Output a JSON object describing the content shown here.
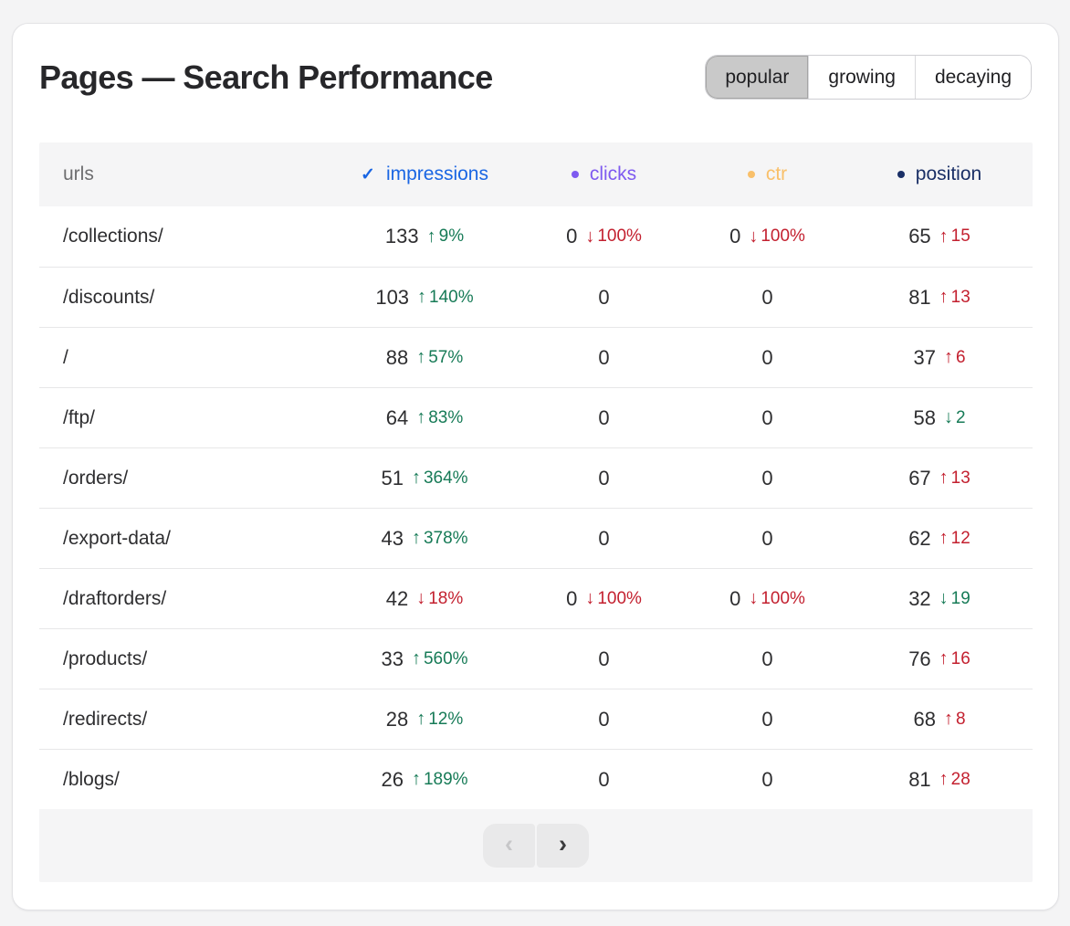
{
  "page": {
    "title": "Pages — Search Performance"
  },
  "tabs": [
    {
      "label": "popular",
      "active": true
    },
    {
      "label": "growing",
      "active": false
    },
    {
      "label": "decaying",
      "active": false
    }
  ],
  "colors": {
    "impressions_blue": "#1a66e3",
    "clicks_purple": "#7e5af0",
    "ctr_yellow": "#f9c06a",
    "position_navy": "#1a2f66",
    "urls_gray": "#6e6e70",
    "good_green": "#177b57",
    "bad_red": "#c3202f"
  },
  "table": {
    "columns": [
      {
        "key": "urls",
        "label": "urls",
        "marker": "none",
        "color": "#6e6e70"
      },
      {
        "key": "impressions",
        "label": "impressions",
        "marker": "check",
        "color": "#1a66e3"
      },
      {
        "key": "clicks",
        "label": "clicks",
        "marker": "dot",
        "color": "#7e5af0"
      },
      {
        "key": "ctr",
        "label": "ctr",
        "marker": "dot",
        "color": "#f9c06a"
      },
      {
        "key": "position",
        "label": "position",
        "marker": "dot",
        "color": "#1a2f66"
      }
    ],
    "rows": [
      {
        "url": "/collections/",
        "impressions": {
          "value": "133",
          "change": {
            "dir": "up",
            "delta": "9%",
            "tone": "good"
          }
        },
        "clicks": {
          "value": "0",
          "change": {
            "dir": "down",
            "delta": "100%",
            "tone": "bad"
          }
        },
        "ctr": {
          "value": "0",
          "change": {
            "dir": "down",
            "delta": "100%",
            "tone": "bad"
          }
        },
        "position": {
          "value": "65",
          "change": {
            "dir": "up",
            "delta": "15",
            "tone": "bad"
          }
        }
      },
      {
        "url": "/discounts/",
        "impressions": {
          "value": "103",
          "change": {
            "dir": "up",
            "delta": "140%",
            "tone": "good"
          }
        },
        "clicks": {
          "value": "0",
          "change": null
        },
        "ctr": {
          "value": "0",
          "change": null
        },
        "position": {
          "value": "81",
          "change": {
            "dir": "up",
            "delta": "13",
            "tone": "bad"
          }
        }
      },
      {
        "url": "/",
        "impressions": {
          "value": "88",
          "change": {
            "dir": "up",
            "delta": "57%",
            "tone": "good"
          }
        },
        "clicks": {
          "value": "0",
          "change": null
        },
        "ctr": {
          "value": "0",
          "change": null
        },
        "position": {
          "value": "37",
          "change": {
            "dir": "up",
            "delta": "6",
            "tone": "bad"
          }
        }
      },
      {
        "url": "/ftp/",
        "impressions": {
          "value": "64",
          "change": {
            "dir": "up",
            "delta": "83%",
            "tone": "good"
          }
        },
        "clicks": {
          "value": "0",
          "change": null
        },
        "ctr": {
          "value": "0",
          "change": null
        },
        "position": {
          "value": "58",
          "change": {
            "dir": "down",
            "delta": "2",
            "tone": "good"
          }
        }
      },
      {
        "url": "/orders/",
        "impressions": {
          "value": "51",
          "change": {
            "dir": "up",
            "delta": "364%",
            "tone": "good"
          }
        },
        "clicks": {
          "value": "0",
          "change": null
        },
        "ctr": {
          "value": "0",
          "change": null
        },
        "position": {
          "value": "67",
          "change": {
            "dir": "up",
            "delta": "13",
            "tone": "bad"
          }
        }
      },
      {
        "url": "/export-data/",
        "impressions": {
          "value": "43",
          "change": {
            "dir": "up",
            "delta": "378%",
            "tone": "good"
          }
        },
        "clicks": {
          "value": "0",
          "change": null
        },
        "ctr": {
          "value": "0",
          "change": null
        },
        "position": {
          "value": "62",
          "change": {
            "dir": "up",
            "delta": "12",
            "tone": "bad"
          }
        }
      },
      {
        "url": "/draftorders/",
        "impressions": {
          "value": "42",
          "change": {
            "dir": "down",
            "delta": "18%",
            "tone": "bad"
          }
        },
        "clicks": {
          "value": "0",
          "change": {
            "dir": "down",
            "delta": "100%",
            "tone": "bad"
          }
        },
        "ctr": {
          "value": "0",
          "change": {
            "dir": "down",
            "delta": "100%",
            "tone": "bad"
          }
        },
        "position": {
          "value": "32",
          "change": {
            "dir": "down",
            "delta": "19",
            "tone": "good"
          }
        }
      },
      {
        "url": "/products/",
        "impressions": {
          "value": "33",
          "change": {
            "dir": "up",
            "delta": "560%",
            "tone": "good"
          }
        },
        "clicks": {
          "value": "0",
          "change": null
        },
        "ctr": {
          "value": "0",
          "change": null
        },
        "position": {
          "value": "76",
          "change": {
            "dir": "up",
            "delta": "16",
            "tone": "bad"
          }
        }
      },
      {
        "url": "/redirects/",
        "impressions": {
          "value": "28",
          "change": {
            "dir": "up",
            "delta": "12%",
            "tone": "good"
          }
        },
        "clicks": {
          "value": "0",
          "change": null
        },
        "ctr": {
          "value": "0",
          "change": null
        },
        "position": {
          "value": "68",
          "change": {
            "dir": "up",
            "delta": "8",
            "tone": "bad"
          }
        }
      },
      {
        "url": "/blogs/",
        "impressions": {
          "value": "26",
          "change": {
            "dir": "up",
            "delta": "189%",
            "tone": "good"
          }
        },
        "clicks": {
          "value": "0",
          "change": null
        },
        "ctr": {
          "value": "0",
          "change": null
        },
        "position": {
          "value": "81",
          "change": {
            "dir": "up",
            "delta": "28",
            "tone": "bad"
          }
        }
      }
    ]
  },
  "pagination": {
    "prev": {
      "icon": "chevron-left",
      "glyph": "‹",
      "enabled": false
    },
    "next": {
      "icon": "chevron-right",
      "glyph": "›",
      "enabled": true
    }
  },
  "glyphs": {
    "check": "✓",
    "arrow_up": "↑",
    "arrow_down": "↓"
  }
}
